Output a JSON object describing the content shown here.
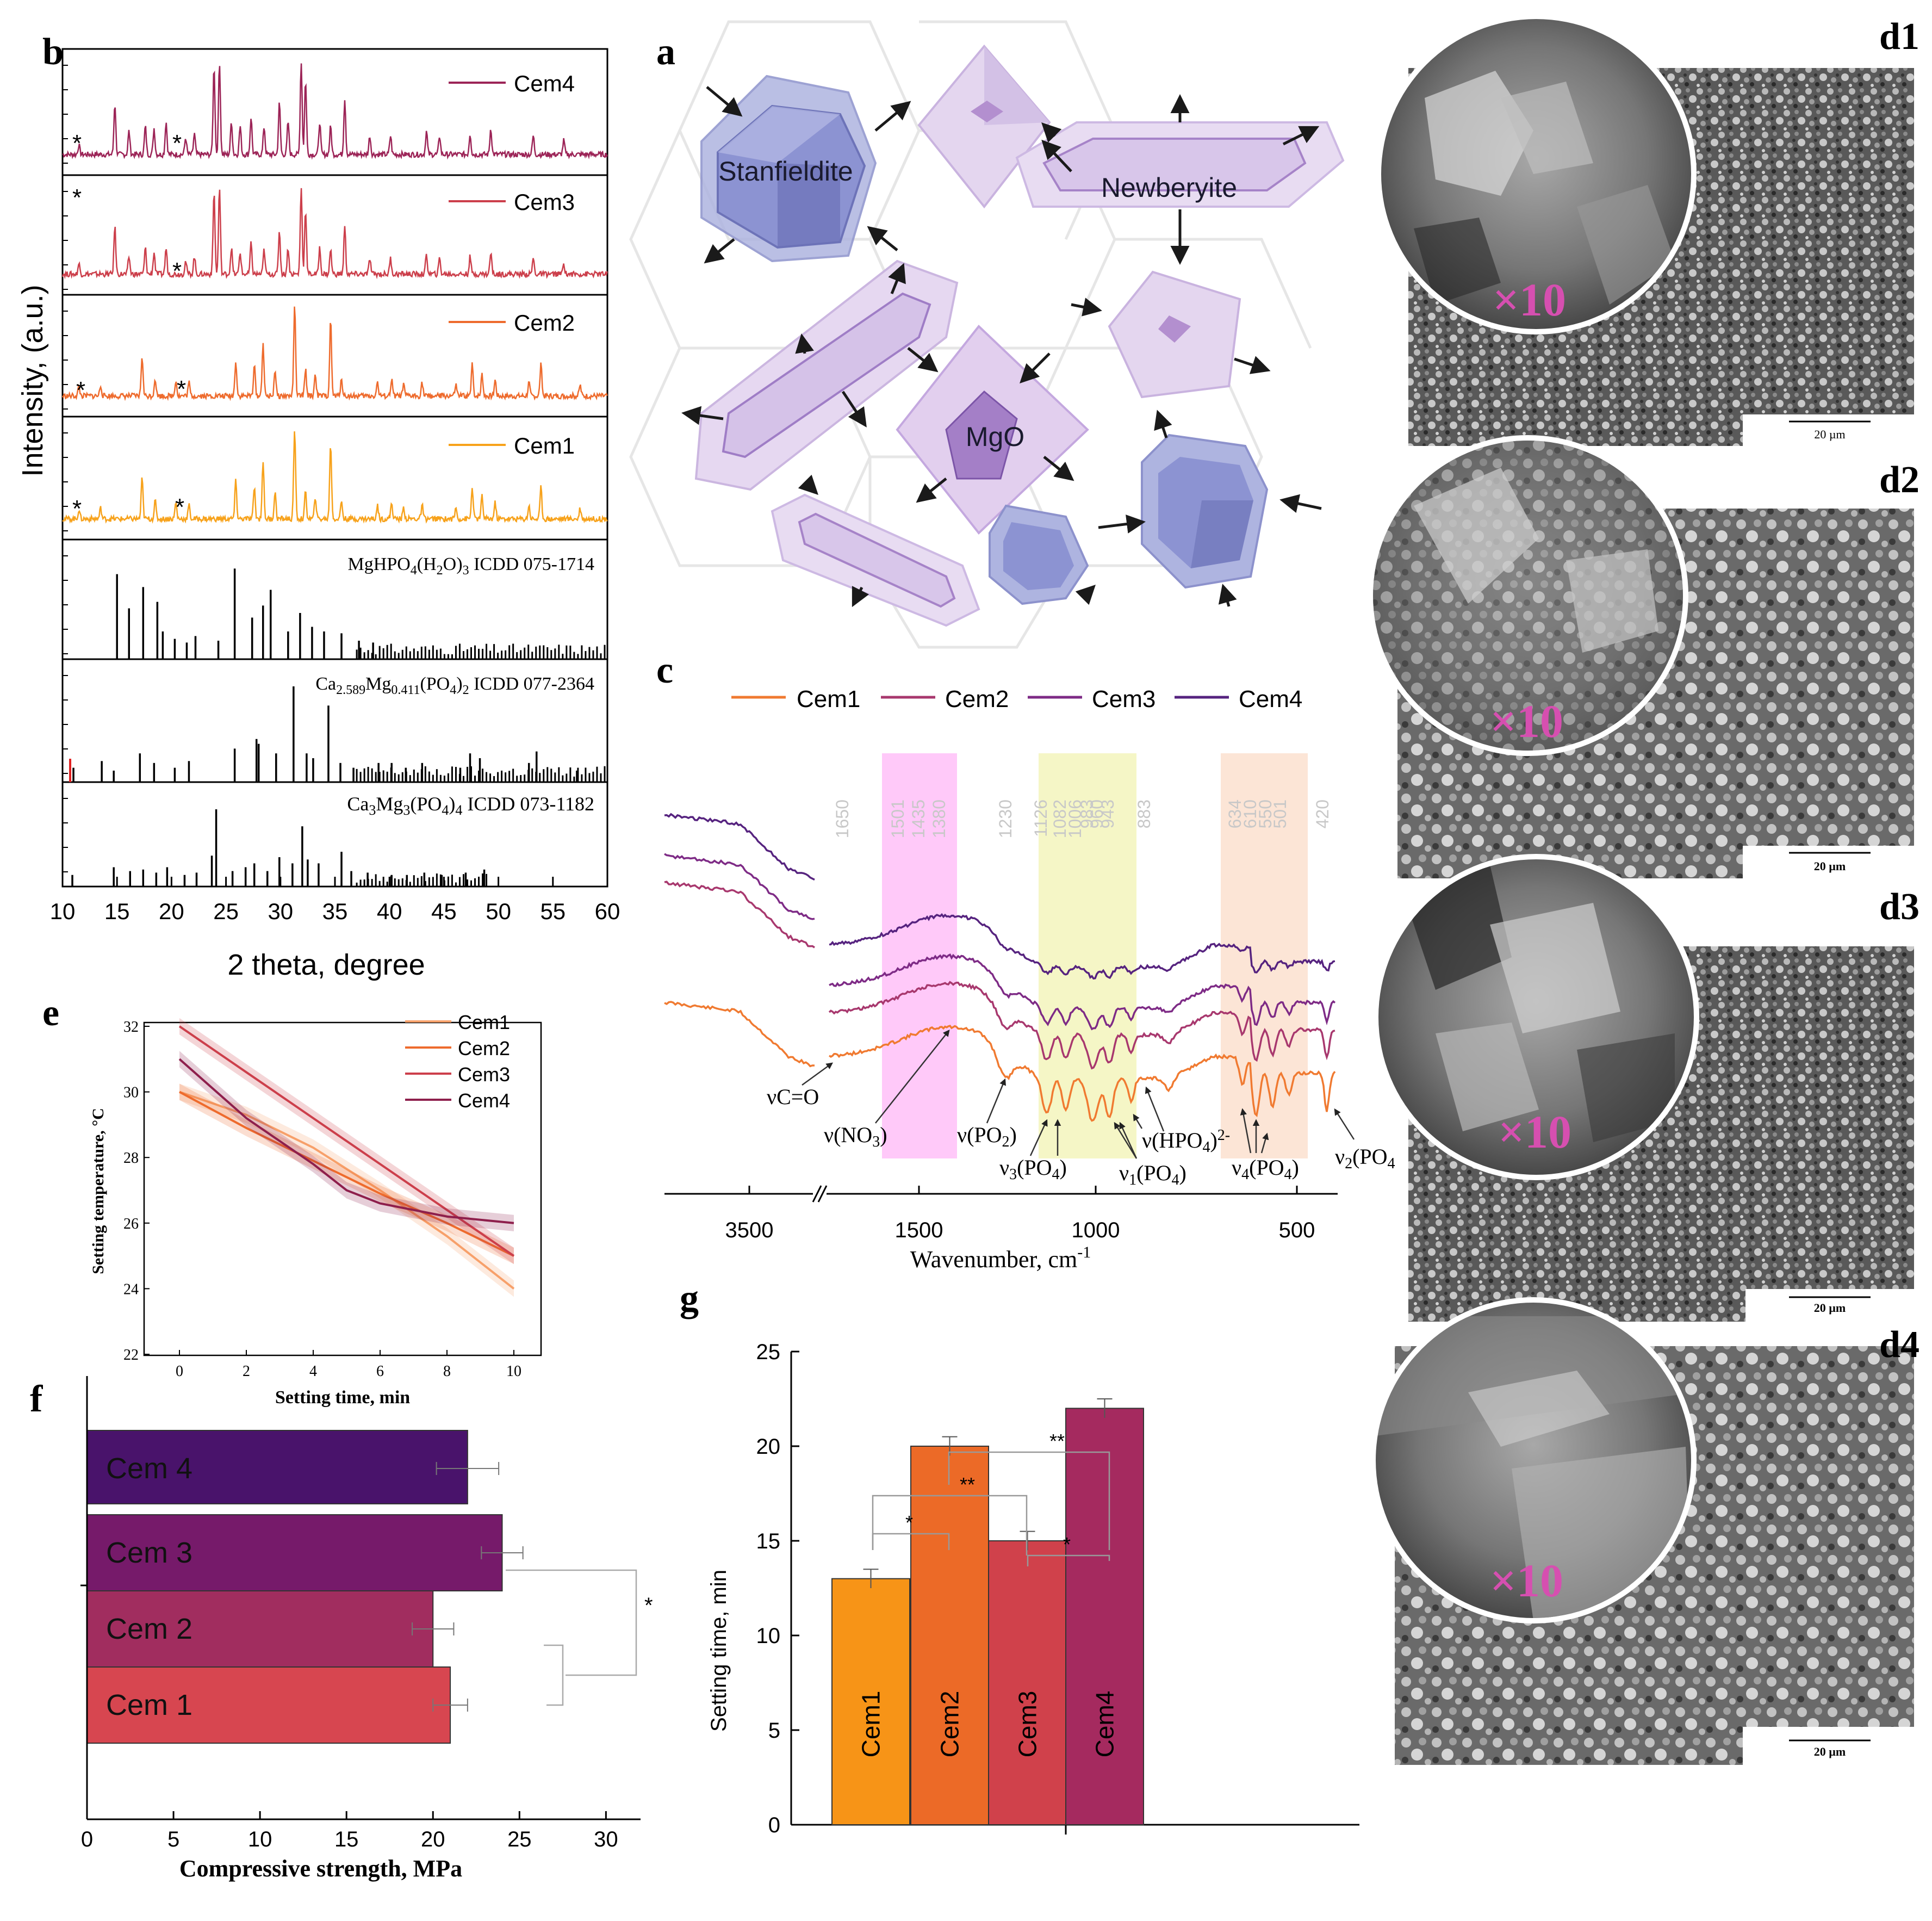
{
  "panel_labels": {
    "a": "a",
    "b": "b",
    "c": "c",
    "d1": "d1",
    "d2": "d2",
    "d3": "d3",
    "d4": "d4",
    "e": "e",
    "f": "f",
    "g": "g"
  },
  "colors": {
    "cem1": "#f7a21b",
    "cem2": "#ee6b2d",
    "cem3": "#cc3f4b",
    "cem4": "#9c2457",
    "ftir_cem1": "#f07a31",
    "ftir_cem2": "#a8386e",
    "ftir_cem3": "#7e2b86",
    "ftir_cem4": "#56237f",
    "f_cem1": "#d74650",
    "f_cem2": "#a12d5f",
    "f_cem3": "#761a6a",
    "f_cem4": "#49136b",
    "g_cem1": "#f79417",
    "g_cem2": "#ec6a27",
    "g_cem3": "#d0414b",
    "g_cem4": "#a52a5f",
    "phase": "#b79cd6",
    "stanf": "#7f86c9",
    "scale_label": "20 µm"
  },
  "diagram": {
    "labels": {
      "stanfieldite": "Stanfieldite",
      "newberyite": "Newberyite",
      "mgo": "MgO"
    }
  },
  "sem": {
    "magnification": "×10",
    "scale": "20 µm"
  },
  "chart_data": [
    {
      "id": "b",
      "type": "line",
      "title": "",
      "xlabel": "2 theta, degree",
      "ylabel": "Intensity, (a.u.)",
      "xlim": [
        10,
        60
      ],
      "xticks": [
        10,
        15,
        20,
        25,
        30,
        35,
        40,
        45,
        50,
        55,
        60
      ],
      "asterisk": "*",
      "series": [
        {
          "name": "Cem4",
          "peaks": [
            [
              11.5,
              0.1
            ],
            [
              14.8,
              0.55
            ],
            [
              16.1,
              0.25
            ],
            [
              17.6,
              0.3
            ],
            [
              18.4,
              0.28
            ],
            [
              19.5,
              0.35
            ],
            [
              21.3,
              0.18
            ],
            [
              22.1,
              0.22
            ],
            [
              23.9,
              0.95
            ],
            [
              24.4,
              1.0
            ],
            [
              25.5,
              0.35
            ],
            [
              26.3,
              0.3
            ],
            [
              27.3,
              0.4
            ],
            [
              28.5,
              0.3
            ],
            [
              29.9,
              0.55
            ],
            [
              30.7,
              0.35
            ],
            [
              31.9,
              1.0
            ],
            [
              32.3,
              0.8
            ],
            [
              33.6,
              0.35
            ],
            [
              34.6,
              0.3
            ],
            [
              35.9,
              0.6
            ],
            [
              38.2,
              0.2
            ],
            [
              40.1,
              0.2
            ],
            [
              43.4,
              0.25
            ],
            [
              44.6,
              0.2
            ],
            [
              47.4,
              0.22
            ],
            [
              49.3,
              0.28
            ],
            [
              53.2,
              0.2
            ],
            [
              56.0,
              0.15
            ]
          ]
        },
        {
          "name": "Cem3",
          "peaks": [
            [
              11.5,
              0.12
            ],
            [
              14.8,
              0.55
            ],
            [
              16.1,
              0.2
            ],
            [
              17.6,
              0.3
            ],
            [
              18.4,
              0.25
            ],
            [
              19.5,
              0.3
            ],
            [
              21.3,
              0.15
            ],
            [
              22.1,
              0.2
            ],
            [
              23.9,
              0.95
            ],
            [
              24.4,
              1.0
            ],
            [
              25.5,
              0.3
            ],
            [
              26.3,
              0.25
            ],
            [
              27.3,
              0.35
            ],
            [
              28.5,
              0.28
            ],
            [
              29.9,
              0.5
            ],
            [
              30.7,
              0.3
            ],
            [
              31.9,
              1.0
            ],
            [
              32.3,
              0.75
            ],
            [
              33.6,
              0.3
            ],
            [
              34.6,
              0.28
            ],
            [
              35.9,
              0.55
            ],
            [
              38.2,
              0.18
            ],
            [
              40.1,
              0.18
            ],
            [
              43.4,
              0.22
            ],
            [
              44.6,
              0.18
            ],
            [
              47.4,
              0.2
            ],
            [
              49.3,
              0.25
            ],
            [
              53.2,
              0.18
            ],
            [
              56.0,
              0.12
            ]
          ]
        },
        {
          "name": "Cem2",
          "peaks": [
            [
              11.5,
              0.1
            ],
            [
              13.5,
              0.12
            ],
            [
              17.3,
              0.45
            ],
            [
              18.5,
              0.2
            ],
            [
              20.4,
              0.18
            ],
            [
              21.6,
              0.15
            ],
            [
              25.9,
              0.4
            ],
            [
              27.6,
              0.35
            ],
            [
              28.4,
              0.6
            ],
            [
              29.5,
              0.3
            ],
            [
              31.3,
              1.0
            ],
            [
              32.3,
              0.3
            ],
            [
              33.2,
              0.25
            ],
            [
              34.6,
              0.85
            ],
            [
              35.6,
              0.2
            ],
            [
              38.9,
              0.15
            ],
            [
              40.2,
              0.18
            ],
            [
              41.3,
              0.12
            ],
            [
              43.0,
              0.15
            ],
            [
              46.1,
              0.12
            ],
            [
              47.6,
              0.35
            ],
            [
              48.5,
              0.25
            ],
            [
              49.7,
              0.18
            ],
            [
              52.8,
              0.15
            ],
            [
              53.9,
              0.35
            ],
            [
              57.5,
              0.12
            ]
          ]
        },
        {
          "name": "Cem1",
          "peaks": [
            [
              11.5,
              0.1
            ],
            [
              13.5,
              0.12
            ],
            [
              17.3,
              0.45
            ],
            [
              18.5,
              0.2
            ],
            [
              20.4,
              0.18
            ],
            [
              21.6,
              0.15
            ],
            [
              25.9,
              0.42
            ],
            [
              27.6,
              0.35
            ],
            [
              28.4,
              0.65
            ],
            [
              29.5,
              0.3
            ],
            [
              31.3,
              1.0
            ],
            [
              32.3,
              0.3
            ],
            [
              33.2,
              0.25
            ],
            [
              34.6,
              0.85
            ],
            [
              35.6,
              0.2
            ],
            [
              38.9,
              0.15
            ],
            [
              40.2,
              0.18
            ],
            [
              41.3,
              0.12
            ],
            [
              43.0,
              0.15
            ],
            [
              46.1,
              0.12
            ],
            [
              47.6,
              0.35
            ],
            [
              48.5,
              0.25
            ],
            [
              49.7,
              0.18
            ],
            [
              52.8,
              0.15
            ],
            [
              53.9,
              0.35
            ],
            [
              57.5,
              0.12
            ]
          ]
        }
      ],
      "references": [
        {
          "name": "MgHPO4(H2O)3 ICDD 075-1714",
          "label_main": "MgHPO",
          "sub1": "4",
          "mid1": "(H",
          "sub2": "2",
          "mid2": "O)",
          "sub3": "3",
          "label_tail": " ICDD 075-1714",
          "sticks": [
            [
              15.0,
              0.92
            ],
            [
              16.1,
              0.55
            ],
            [
              17.4,
              0.78
            ],
            [
              18.7,
              0.62
            ],
            [
              19.2,
              0.3
            ],
            [
              20.3,
              0.22
            ],
            [
              21.4,
              0.18
            ],
            [
              22.2,
              0.25
            ],
            [
              24.3,
              0.2
            ],
            [
              25.8,
              0.98
            ],
            [
              27.4,
              0.45
            ],
            [
              28.4,
              0.58
            ],
            [
              29.1,
              0.75
            ],
            [
              30.7,
              0.3
            ],
            [
              31.8,
              0.5
            ],
            [
              32.9,
              0.35
            ],
            [
              34.0,
              0.3
            ],
            [
              35.6,
              0.28
            ],
            [
              37.2,
              0.2
            ],
            [
              38.5,
              0.18
            ]
          ]
        },
        {
          "name": "Ca2.589Mg0.411(PO4)2 ICDD 077-2364",
          "label_main": "Ca",
          "sub1": "2.589",
          "mid1": "Mg",
          "sub2": "0.411",
          "mid2": "(PO",
          "sub3": "4",
          "mid3": ")",
          "sub4": "2",
          "label_tail": " ICDD 077-2364",
          "sticks": [
            [
              11.0,
              0.15
            ],
            [
              13.6,
              0.22
            ],
            [
              14.7,
              0.12
            ],
            [
              17.1,
              0.3
            ],
            [
              18.4,
              0.2
            ],
            [
              20.3,
              0.15
            ],
            [
              21.6,
              0.22
            ],
            [
              25.8,
              0.35
            ],
            [
              27.8,
              0.45
            ],
            [
              28.0,
              0.4
            ],
            [
              29.6,
              0.3
            ],
            [
              31.2,
              1.0
            ],
            [
              32.4,
              0.3
            ],
            [
              33.0,
              0.25
            ],
            [
              34.4,
              0.8
            ],
            [
              35.5,
              0.2
            ],
            [
              36.7,
              0.15
            ],
            [
              39.0,
              0.2
            ],
            [
              40.2,
              0.2
            ],
            [
              41.5,
              0.15
            ],
            [
              43.0,
              0.2
            ],
            [
              46.5,
              0.15
            ],
            [
              47.4,
              0.3
            ],
            [
              48.3,
              0.25
            ],
            [
              52.8,
              0.2
            ],
            [
              53.5,
              0.32
            ],
            [
              57.2,
              0.12
            ]
          ]
        },
        {
          "name": "Ca3Mg3(PO4)4 ICDD 073-1182",
          "label_main": "Ca",
          "sub1": "3",
          "mid1": "Mg",
          "sub2": "3",
          "mid2": "(PO",
          "sub3": "4",
          "mid3": ")",
          "sub4": "4",
          "label_tail": " ICDD 073-1182",
          "sticks": [
            [
              10.9,
              0.15
            ],
            [
              14.7,
              0.25
            ],
            [
              16.2,
              0.2
            ],
            [
              17.4,
              0.22
            ],
            [
              18.6,
              0.18
            ],
            [
              19.6,
              0.25
            ],
            [
              21.2,
              0.15
            ],
            [
              22.3,
              0.18
            ],
            [
              23.7,
              0.4
            ],
            [
              24.1,
              1.0
            ],
            [
              25.6,
              0.2
            ],
            [
              26.8,
              0.25
            ],
            [
              27.6,
              0.3
            ],
            [
              28.8,
              0.2
            ],
            [
              29.9,
              0.38
            ],
            [
              31.1,
              0.3
            ],
            [
              32.0,
              0.78
            ],
            [
              32.5,
              0.35
            ],
            [
              33.5,
              0.3
            ],
            [
              35.6,
              0.45
            ],
            [
              36.5,
              0.2
            ],
            [
              38.0,
              0.18
            ],
            [
              40.2,
              0.15
            ],
            [
              41.6,
              0.15
            ],
            [
              43.2,
              0.18
            ],
            [
              44.8,
              0.15
            ],
            [
              47.0,
              0.18
            ],
            [
              48.7,
              0.22
            ]
          ]
        }
      ]
    },
    {
      "id": "c",
      "type": "line",
      "xlabel": "Wavenumber, cm",
      "xlabel_sup": "-1",
      "xticks": [
        "3500",
        "1500",
        "1000",
        "500"
      ],
      "legend": [
        "Cem1",
        "Cem2",
        "Cem3",
        "Cem4"
      ],
      "band_labels": [
        "1650",
        "1501",
        "1435",
        "1380",
        "1230",
        "1126",
        "1082",
        "1006",
        "983",
        "960",
        "943",
        "883",
        "634",
        "610",
        "550",
        "501",
        "420"
      ],
      "ann": {
        "vco": "νC=O",
        "vno3": "ν(NO",
        "vno3_sub": "3",
        "close": ")",
        "vpo2": "ν(PO",
        "vpo2_sub": "2",
        "v3": "ν",
        "v3_sub": "3",
        "v1": "ν",
        "v1_sub": "1",
        "v4": "ν",
        "v4_sub": "4",
        "v2": "ν",
        "v2_sub": "2",
        "po4": "(PO",
        "po4_sub": "4",
        "hpo4": "ν(HPO",
        "hpo4_sub": "4",
        "hpo4_sup": "2-"
      }
    },
    {
      "id": "e",
      "type": "line",
      "xlabel": "Setting time, min",
      "ylabel": "Setting temperature, °C",
      "xlim": [
        0,
        10
      ],
      "ylim": [
        22,
        32
      ],
      "xticks": [
        0,
        2,
        4,
        6,
        8,
        10
      ],
      "yticks": [
        22,
        24,
        26,
        28,
        30,
        32
      ],
      "series": [
        {
          "name": "Cem1",
          "x": [
            0,
            2,
            4,
            6,
            8,
            10
          ],
          "y": [
            30.0,
            29.3,
            28.3,
            27.0,
            25.6,
            24.0
          ]
        },
        {
          "name": "Cem2",
          "x": [
            0,
            2,
            4,
            6,
            8,
            10
          ],
          "y": [
            30.0,
            28.9,
            27.9,
            26.9,
            26.0,
            25.0
          ]
        },
        {
          "name": "Cem3",
          "x": [
            0,
            2,
            4,
            6,
            8,
            10
          ],
          "y": [
            32.0,
            30.6,
            29.2,
            27.8,
            26.4,
            25.0
          ]
        },
        {
          "name": "Cem4",
          "x": [
            0,
            2,
            4,
            5,
            6,
            8,
            10
          ],
          "y": [
            31.0,
            29.2,
            27.8,
            27.0,
            26.6,
            26.2,
            26.0
          ]
        }
      ]
    },
    {
      "id": "f",
      "type": "bar",
      "orientation": "horizontal",
      "categories": [
        "Cem 1",
        "Cem 2",
        "Cem 3",
        "Cem 4"
      ],
      "values": [
        21,
        20,
        24,
        22
      ],
      "errors": [
        1.0,
        1.2,
        1.2,
        1.8
      ],
      "xlabel": "Compressive strength, MPa",
      "xlim": [
        0,
        32
      ],
      "xticks": [
        0,
        5,
        10,
        15,
        20,
        25,
        30
      ],
      "significance": "*"
    },
    {
      "id": "g",
      "type": "bar",
      "categories": [
        "Cem1",
        "Cem2",
        "Cem3",
        "Cem4"
      ],
      "values": [
        13,
        20,
        15,
        22
      ],
      "errors": [
        0.5,
        0.5,
        0.5,
        0.5
      ],
      "ylabel": "Setting time, min",
      "ylim": [
        0,
        25
      ],
      "yticks": [
        0,
        5,
        10,
        15,
        20,
        25
      ],
      "significance": [
        {
          "pair": "Cem1-Cem2",
          "mark": "*"
        },
        {
          "pair": "Cem1-Cem3",
          "mark": "**"
        },
        {
          "pair": "Cem3-Cem4",
          "mark": "*"
        },
        {
          "pair": "Cem2-Cem4",
          "mark": "**"
        }
      ]
    }
  ]
}
